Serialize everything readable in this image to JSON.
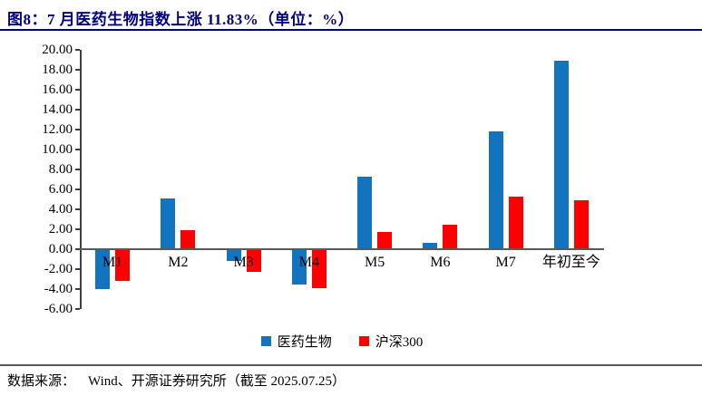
{
  "figure": {
    "title": "图8：7 月医药生物指数上涨 11.83%（单位：%）",
    "footer": {
      "source_label": "数据来源：",
      "source_text": "Wind、开源证券研究所（截至 2025.07.25）"
    }
  },
  "colors": {
    "title": "#000080",
    "axis": "#595959",
    "pharma_blue": "#1274BE",
    "csi300_red": "#FF0000"
  },
  "chart_data": {
    "type": "bar",
    "title": "图8：7 月医药生物指数上涨 11.83%（单位：%）",
    "categories": [
      "M1",
      "M2",
      "M3",
      "M4",
      "M5",
      "M6",
      "M7",
      "年初至今"
    ],
    "category_keys": [
      "m1",
      "m2",
      "m3",
      "m4",
      "m5",
      "m6",
      "m7",
      "ytd"
    ],
    "series": [
      {
        "name": "医药生物",
        "color": "#1274BE",
        "values": [
          -3.87,
          5.08,
          -1.12,
          -3.43,
          7.27,
          0.66,
          11.83,
          18.9
        ]
      },
      {
        "name": "沪深300",
        "color": "#FF0000",
        "values": [
          -3.09,
          1.88,
          -2.21,
          -3.86,
          1.7,
          2.5,
          5.25,
          4.87
        ]
      }
    ],
    "xlabel": "",
    "ylabel": "",
    "unit": "%",
    "ylim": [
      -6,
      20
    ],
    "ytick_step": 2,
    "ytick_decimals": 2,
    "grid": false,
    "legend_position": "bottom"
  }
}
